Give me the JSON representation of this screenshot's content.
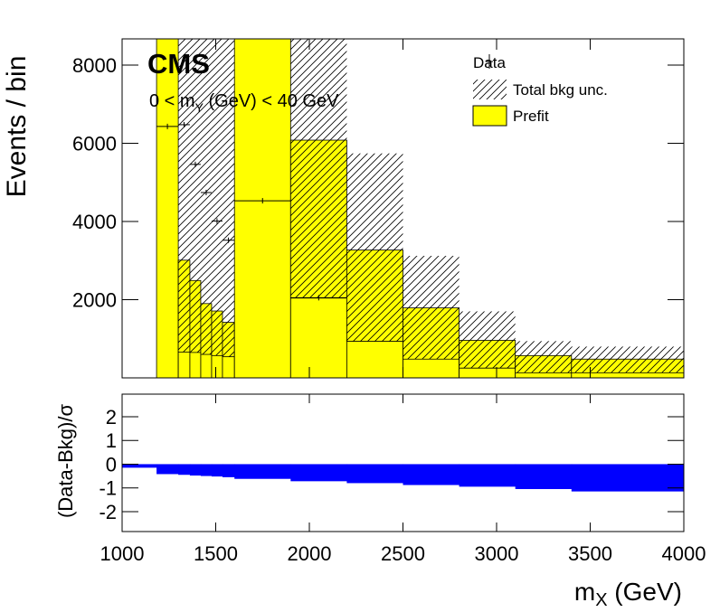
{
  "chart_data": [
    {
      "type": "histogram",
      "ylabel": "Events / bin",
      "cms_label": "CMS",
      "annotation_parts": [
        "0 < m",
        "Y",
        " (GeV) < 40 GeV"
      ],
      "bins": [
        1184,
        1300,
        1362,
        1420,
        1478,
        1536,
        1600,
        1900,
        2200,
        2500,
        2800,
        3100,
        3400,
        4000
      ],
      "xlim": [
        1000,
        4000
      ],
      "xticks": [
        1000,
        1500,
        2000,
        2500,
        3000,
        3500,
        4000
      ],
      "ylim": [
        0,
        8670
      ],
      "yticks": [
        2000,
        4000,
        6000,
        8000
      ],
      "series": [
        {
          "name": "Prefit",
          "color": "#ffff00",
          "values": [
            9500,
            3010,
            2490,
            1900,
            1710,
            1420,
            9500,
            6080,
            3270,
            1790,
            960,
            570,
            480
          ]
        },
        {
          "name": "Total bkg unc.",
          "low": [
            null,
            660,
            650,
            600,
            570,
            540,
            null,
            2040,
            935,
            480,
            250,
            130,
            130
          ],
          "high": [
            null,
            9000,
            9000,
            9000,
            9000,
            9000,
            null,
            9000,
            5740,
            3120,
            1700,
            940,
            800
          ]
        },
        {
          "name": "Data",
          "color": "#000000",
          "values": [
            6430,
            6475,
            5460,
            4740,
            4010,
            3520,
            4530,
            2050,
            null,
            null,
            null,
            null,
            null
          ]
        }
      ]
    },
    {
      "type": "histogram",
      "ylabel": "(Data-Bkg)/σ",
      "xlabel_parts": [
        "m",
        "X",
        " (GeV)"
      ],
      "color": "#0000ff",
      "bins": [
        1000,
        1184,
        1300,
        1362,
        1420,
        1478,
        1536,
        1600,
        1900,
        2200,
        2500,
        2800,
        3100,
        3400,
        4000
      ],
      "values": [
        -0.15,
        -0.42,
        -0.45,
        -0.48,
        -0.5,
        -0.52,
        -0.55,
        -0.62,
        -0.72,
        -0.8,
        -0.88,
        -0.95,
        -1.05,
        -1.15
      ],
      "xlim": [
        1000,
        4000
      ],
      "xticks": [
        1000,
        1500,
        2000,
        2500,
        3000,
        3500,
        4000
      ],
      "ylim": [
        -2.84,
        2.95
      ],
      "yticks": [
        -2,
        -1,
        0,
        1,
        2
      ]
    }
  ]
}
